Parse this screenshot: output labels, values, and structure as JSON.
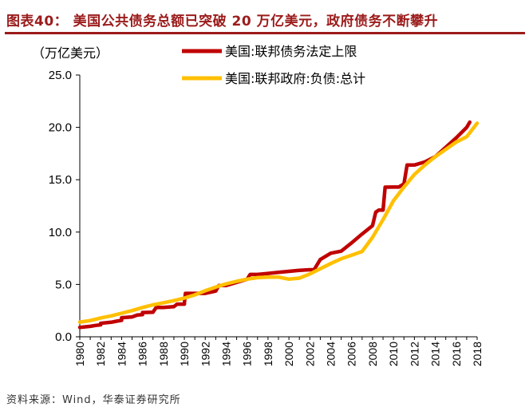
{
  "figure": {
    "title": "图表40：  美国公共债务总额已突破 20 万亿美元，政府债务不断攀升",
    "source": "资料来源：Wind，华泰证券研究所"
  },
  "colors": {
    "brand": "#9b1b1b",
    "ceiling_series": "#c00000",
    "debt_series": "#ffc000"
  },
  "chart_data": {
    "type": "line",
    "unit_label": "（万亿美元）",
    "xlim": [
      1980,
      2018
    ],
    "ylim": [
      0,
      25
    ],
    "y_ticks": [
      "0.0",
      "5.0",
      "10.0",
      "15.0",
      "20.0",
      "25.0"
    ],
    "x_ticks": [
      "1980",
      "1982",
      "1984",
      "1986",
      "1988",
      "1990",
      "1992",
      "1994",
      "1996",
      "1998",
      "2000",
      "2002",
      "2004",
      "2006",
      "2008",
      "2010",
      "2012",
      "2014",
      "2016",
      "2018"
    ],
    "legend_position": "top",
    "series": [
      {
        "name": "美国:联邦债务法定上限",
        "color": "#c00000",
        "points": [
          [
            1980,
            0.9
          ],
          [
            1981,
            1.0
          ],
          [
            1981.5,
            1.08
          ],
          [
            1982,
            1.14
          ],
          [
            1982,
            1.29
          ],
          [
            1983,
            1.39
          ],
          [
            1983.5,
            1.49
          ],
          [
            1984,
            1.57
          ],
          [
            1984,
            1.82
          ],
          [
            1985,
            1.9
          ],
          [
            1985.5,
            2.08
          ],
          [
            1986,
            2.11
          ],
          [
            1986,
            2.32
          ],
          [
            1987,
            2.35
          ],
          [
            1987.3,
            2.8
          ],
          [
            1988,
            2.8
          ],
          [
            1989,
            2.87
          ],
          [
            1989.3,
            3.12
          ],
          [
            1990,
            3.12
          ],
          [
            1990,
            3.23
          ],
          [
            1990.1,
            4.15
          ],
          [
            1991,
            4.15
          ],
          [
            1992,
            4.15
          ],
          [
            1993,
            4.37
          ],
          [
            1993.3,
            4.9
          ],
          [
            1994,
            4.9
          ],
          [
            1995,
            5.2
          ],
          [
            1996,
            5.5
          ],
          [
            1996.3,
            5.95
          ],
          [
            1997,
            5.95
          ],
          [
            1998,
            6.05
          ],
          [
            1999,
            6.15
          ],
          [
            2000,
            6.25
          ],
          [
            2001,
            6.35
          ],
          [
            2002,
            6.4
          ],
          [
            2002.4,
            6.4
          ],
          [
            2003,
            7.38
          ],
          [
            2004,
            7.98
          ],
          [
            2005,
            8.18
          ],
          [
            2006,
            8.97
          ],
          [
            2007,
            9.82
          ],
          [
            2008,
            10.62
          ],
          [
            2008.3,
            11.9
          ],
          [
            2008.6,
            12.1
          ],
          [
            2009,
            12.1
          ],
          [
            2009.2,
            14.29
          ],
          [
            2010,
            14.3
          ],
          [
            2010.5,
            14.3
          ],
          [
            2011,
            14.6
          ],
          [
            2011.3,
            16.4
          ],
          [
            2012,
            16.4
          ],
          [
            2013,
            16.7
          ],
          [
            2014,
            17.2
          ],
          [
            2015,
            18.1
          ],
          [
            2016,
            19.0
          ],
          [
            2017,
            20.0
          ],
          [
            2017.3,
            20.5
          ]
        ]
      },
      {
        "name": "美国:联邦政府:负债:总计",
        "color": "#ffc000",
        "points": [
          [
            1980,
            1.4
          ],
          [
            1981,
            1.55
          ],
          [
            1982,
            1.8
          ],
          [
            1983,
            2.0
          ],
          [
            1984,
            2.25
          ],
          [
            1985,
            2.5
          ],
          [
            1986,
            2.8
          ],
          [
            1987,
            3.05
          ],
          [
            1988,
            3.25
          ],
          [
            1989,
            3.45
          ],
          [
            1990,
            3.7
          ],
          [
            1991,
            4.0
          ],
          [
            1992,
            4.4
          ],
          [
            1993,
            4.75
          ],
          [
            1994,
            5.05
          ],
          [
            1995,
            5.3
          ],
          [
            1996,
            5.5
          ],
          [
            1997,
            5.65
          ],
          [
            1998,
            5.7
          ],
          [
            1999,
            5.7
          ],
          [
            2000,
            5.5
          ],
          [
            2001,
            5.6
          ],
          [
            2002,
            6.0
          ],
          [
            2003,
            6.5
          ],
          [
            2004,
            7.0
          ],
          [
            2005,
            7.45
          ],
          [
            2006,
            7.8
          ],
          [
            2007,
            8.15
          ],
          [
            2008,
            9.5
          ],
          [
            2009,
            11.2
          ],
          [
            2010,
            13.0
          ],
          [
            2011,
            14.3
          ],
          [
            2012,
            15.5
          ],
          [
            2013,
            16.4
          ],
          [
            2014,
            17.2
          ],
          [
            2015,
            17.9
          ],
          [
            2016,
            18.6
          ],
          [
            2017,
            19.1
          ],
          [
            2018,
            20.4
          ]
        ]
      }
    ]
  }
}
